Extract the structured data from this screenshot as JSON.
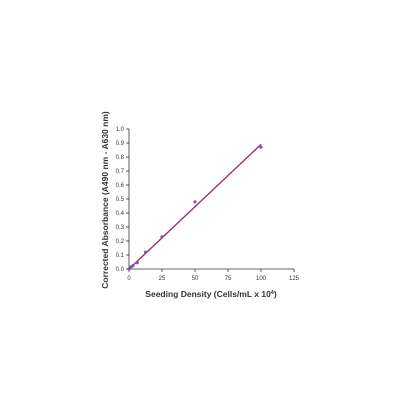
{
  "chart_data": {
    "type": "scatter",
    "title": "",
    "xlabel": "Seeding Density (Cells/mL x 10",
    "xlabel_superscript": "4",
    "xlabel_suffix": ")",
    "ylabel": "Corrected Absorbance (A490 nm - A630 nm)",
    "xlim": [
      0,
      125
    ],
    "ylim": [
      0,
      1.0
    ],
    "x_ticks": [
      0,
      25,
      50,
      75,
      100,
      125
    ],
    "y_ticks": [
      0,
      0.1,
      0.2,
      0.3,
      0.4,
      0.5,
      0.6,
      0.7,
      0.8,
      0.9,
      1.0
    ],
    "x_tick_labels": [
      "0",
      "25",
      "50",
      "75",
      "100",
      "125"
    ],
    "y_tick_labels": [
      "0.0",
      "0.1",
      "0.2",
      "0.3",
      "0.4",
      "0.5",
      "0.6",
      "0.7",
      "0.8",
      "0.9",
      "1.0"
    ],
    "grid": false,
    "legend": "none",
    "series": [
      {
        "points": [
          {
            "x": 0,
            "y": 0.0
          },
          {
            "x": 0.8,
            "y": 0.01
          },
          {
            "x": 1.6,
            "y": 0.015
          },
          {
            "x": 3.1,
            "y": 0.025
          },
          {
            "x": 6.3,
            "y": 0.045
          },
          {
            "x": 12.5,
            "y": 0.12
          },
          {
            "x": 25,
            "y": 0.23
          },
          {
            "x": 50,
            "y": 0.48
          },
          {
            "x": 100,
            "y": 0.87
          }
        ],
        "fit_line": {
          "x": [
            0,
            100
          ],
          "y": [
            0.0,
            0.89
          ]
        },
        "line_color": "#9b2f6e",
        "marker_color": "#7a5a9e"
      }
    ]
  }
}
